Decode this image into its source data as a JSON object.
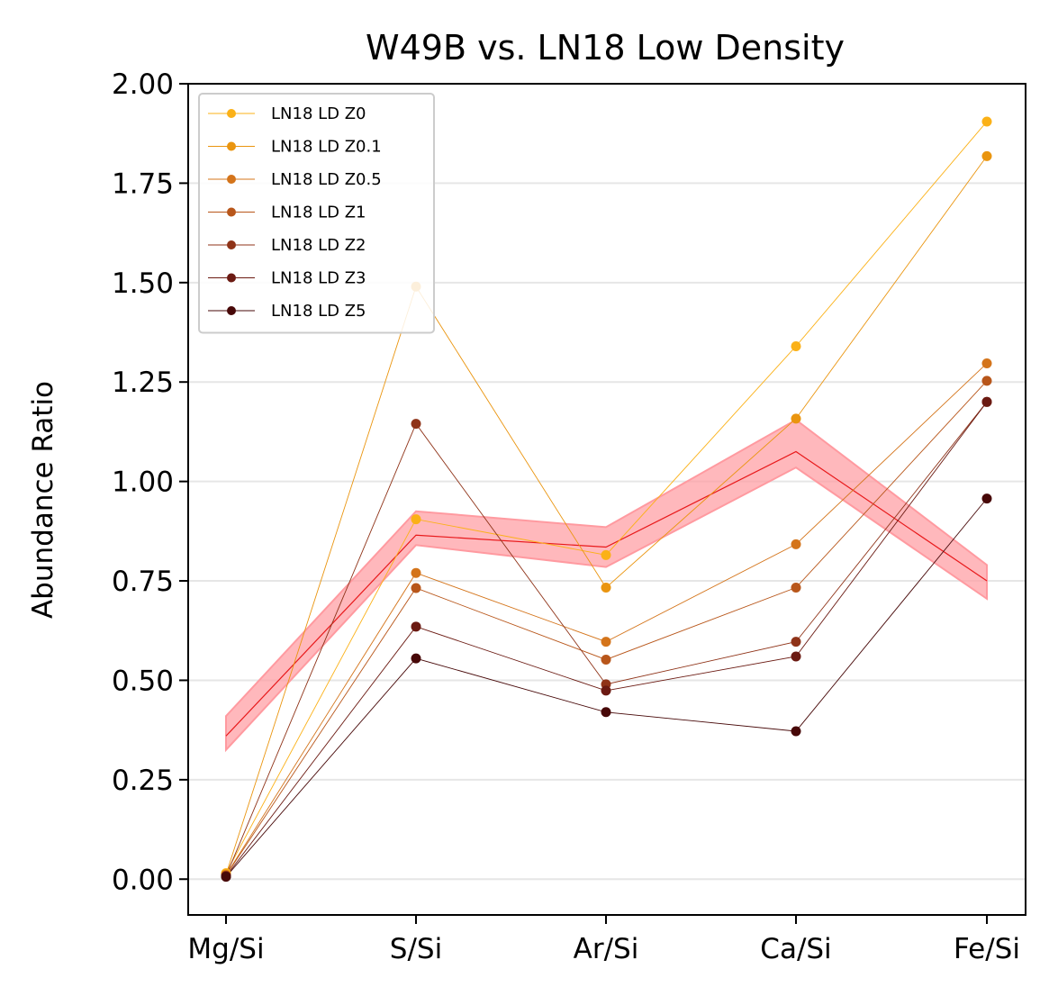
{
  "chart_data": {
    "type": "line",
    "title": "W49B vs. LN18 Low Density",
    "xlabel": "",
    "ylabel": "Abundance Ratio",
    "categories": [
      "Mg/Si",
      "S/Si",
      "Ar/Si",
      "Ca/Si",
      "Fe/Si"
    ],
    "ylim": [
      -0.09,
      2.0
    ],
    "yticks": [
      "0.00",
      "0.25",
      "0.50",
      "0.75",
      "1.00",
      "1.25",
      "1.50",
      "1.75",
      "2.00"
    ],
    "ytick_values": [
      0,
      0.25,
      0.5,
      0.75,
      1.0,
      1.25,
      1.5,
      1.75,
      2.0
    ],
    "grid": "horizontal",
    "legend_position": "upper-left",
    "observed": {
      "name": "W49B",
      "color": "#e8191b",
      "band_color": "#ff9aa0",
      "values": [
        0.36,
        0.865,
        0.835,
        1.075,
        0.75
      ],
      "lower": [
        0.325,
        0.84,
        0.785,
        1.035,
        0.705
      ],
      "upper": [
        0.41,
        0.925,
        0.885,
        1.155,
        0.79
      ]
    },
    "series": [
      {
        "name": "LN18 LD Z0",
        "color": "#fbb117",
        "values": [
          0.015,
          0.905,
          0.815,
          1.34,
          1.905
        ]
      },
      {
        "name": "LN18 LD Z0.1",
        "color": "#ea950f",
        "values": [
          0.012,
          1.49,
          0.733,
          1.158,
          1.818
        ]
      },
      {
        "name": "LN18 LD Z0.5",
        "color": "#d4741a",
        "values": [
          0.01,
          0.77,
          0.597,
          0.842,
          1.297
        ]
      },
      {
        "name": "LN18 LD Z1",
        "color": "#b8561a",
        "values": [
          0.009,
          0.732,
          0.552,
          0.733,
          1.253
        ]
      },
      {
        "name": "LN18 LD Z2",
        "color": "#8f3318",
        "values": [
          0.008,
          1.145,
          0.49,
          0.597,
          1.2
        ]
      },
      {
        "name": "LN18 LD Z3",
        "color": "#6b1a12",
        "values": [
          0.007,
          0.635,
          0.474,
          0.56,
          1.2
        ]
      },
      {
        "name": "LN18 LD Z5",
        "color": "#470808",
        "values": [
          0.006,
          0.555,
          0.42,
          0.372,
          0.957
        ]
      }
    ]
  }
}
